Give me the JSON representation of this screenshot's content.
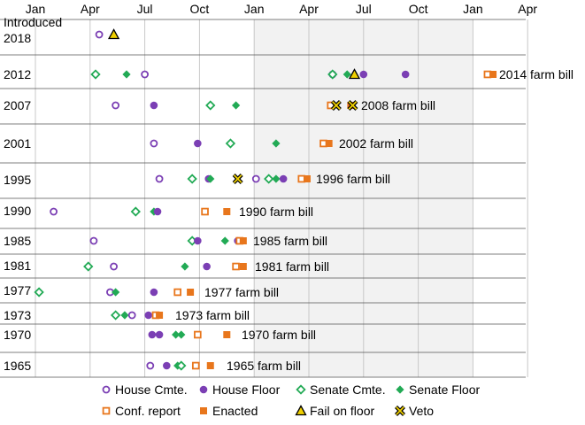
{
  "chart_data": {
    "type": "scatter",
    "title": "",
    "xlabel": "",
    "ylabel": "",
    "x_unit": "month offset from January of the introduction year (Jan = 0, Jan of following year = 12)",
    "x_tick_labels": [
      "Jan",
      "Apr",
      "Jul",
      "Oct",
      "Jan",
      "Apr",
      "Jul",
      "Oct",
      "Jan",
      "Apr"
    ],
    "x_range": [
      0,
      27
    ],
    "shaded_range": [
      12,
      24
    ],
    "y_header_label": "Introduced",
    "grid": true,
    "legend_position": "bottom",
    "colors": {
      "house": "#7b3fb4",
      "senate": "#22aa55",
      "conference_enacted": "#e8761c",
      "fail": "#f0d000",
      "shade": "#f2f2f2",
      "grid": "#c8c8c8",
      "row_line": "#555555"
    },
    "legend": [
      {
        "key": "house_cmte",
        "label": "House Cmte."
      },
      {
        "key": "house_floor",
        "label": "House Floor"
      },
      {
        "key": "senate_cmte",
        "label": "Senate Cmte."
      },
      {
        "key": "senate_floor",
        "label": "Senate Floor"
      },
      {
        "key": "conf_report",
        "label": "Conf. report"
      },
      {
        "key": "enacted",
        "label": "Enacted"
      },
      {
        "key": "fail_floor",
        "label": "Fail on floor"
      },
      {
        "key": "veto",
        "label": "Veto"
      }
    ],
    "rows": [
      {
        "year": "2018",
        "bill_label": "",
        "events": [
          {
            "type": "house_cmte",
            "x": 3.5
          },
          {
            "type": "fail_floor",
            "x": 4.3
          }
        ]
      },
      {
        "year": "2012",
        "bill_label": "2014 farm bill",
        "events": [
          {
            "type": "senate_cmte",
            "x": 3.3
          },
          {
            "type": "senate_floor",
            "x": 5.0
          },
          {
            "type": "house_cmte",
            "x": 6.0
          },
          {
            "type": "house_cmte",
            "x": 16.3
          },
          {
            "type": "senate_cmte",
            "x": 16.3
          },
          {
            "type": "senate_floor",
            "x": 17.1
          },
          {
            "type": "fail_floor",
            "x": 17.5
          },
          {
            "type": "house_floor",
            "x": 18.0
          },
          {
            "type": "house_floor",
            "x": 20.3
          },
          {
            "type": "conf_report",
            "x": 24.8
          },
          {
            "type": "enacted",
            "x": 25.1
          }
        ]
      },
      {
        "year": "2007",
        "bill_label": "2008 farm bill",
        "events": [
          {
            "type": "house_cmte",
            "x": 4.4
          },
          {
            "type": "house_floor",
            "x": 6.5
          },
          {
            "type": "senate_cmte",
            "x": 9.6
          },
          {
            "type": "senate_floor",
            "x": 11.0
          },
          {
            "type": "conf_report",
            "x": 16.2
          },
          {
            "type": "veto",
            "x": 16.5
          },
          {
            "type": "enacted",
            "x": 17.3
          },
          {
            "type": "veto",
            "x": 17.4
          }
        ]
      },
      {
        "year": "2001",
        "bill_label": "2002 farm bill",
        "events": [
          {
            "type": "house_cmte",
            "x": 6.5
          },
          {
            "type": "house_floor",
            "x": 8.9
          },
          {
            "type": "senate_cmte",
            "x": 10.7
          },
          {
            "type": "senate_floor",
            "x": 13.2
          },
          {
            "type": "conf_report",
            "x": 15.8
          },
          {
            "type": "enacted",
            "x": 16.1
          }
        ]
      },
      {
        "year": "1995",
        "bill_label": "1996 farm bill",
        "events": [
          {
            "type": "house_cmte",
            "x": 6.8
          },
          {
            "type": "senate_cmte",
            "x": 8.6
          },
          {
            "type": "house_floor",
            "x": 9.5
          },
          {
            "type": "senate_floor",
            "x": 9.6
          },
          {
            "type": "veto",
            "x": 11.1
          },
          {
            "type": "house_cmte",
            "x": 12.1
          },
          {
            "type": "senate_cmte",
            "x": 12.8
          },
          {
            "type": "senate_floor",
            "x": 13.2
          },
          {
            "type": "house_floor",
            "x": 13.6
          },
          {
            "type": "conf_report",
            "x": 14.6
          },
          {
            "type": "enacted",
            "x": 14.9
          }
        ]
      },
      {
        "year": "1990",
        "bill_label": "1990 farm bill",
        "events": [
          {
            "type": "house_cmte",
            "x": 1.0
          },
          {
            "type": "senate_cmte",
            "x": 5.5
          },
          {
            "type": "senate_floor",
            "x": 6.5
          },
          {
            "type": "house_floor",
            "x": 6.7
          },
          {
            "type": "conf_report",
            "x": 9.3
          },
          {
            "type": "enacted",
            "x": 10.5
          }
        ]
      },
      {
        "year": "1985",
        "bill_label": "1985 farm bill",
        "events": [
          {
            "type": "house_cmte",
            "x": 3.2
          },
          {
            "type": "senate_cmte",
            "x": 8.6
          },
          {
            "type": "house_floor",
            "x": 8.9
          },
          {
            "type": "senate_floor",
            "x": 10.4
          },
          {
            "type": "house_floor",
            "x": 11.1
          },
          {
            "type": "conf_report",
            "x": 11.2
          },
          {
            "type": "enacted",
            "x": 11.4
          }
        ]
      },
      {
        "year": "1981",
        "bill_label": "1981 farm bill",
        "events": [
          {
            "type": "senate_cmte",
            "x": 2.9
          },
          {
            "type": "house_cmte",
            "x": 4.3
          },
          {
            "type": "senate_floor",
            "x": 8.2
          },
          {
            "type": "house_floor",
            "x": 9.4
          },
          {
            "type": "conf_report",
            "x": 11.0
          },
          {
            "type": "enacted",
            "x": 11.4
          }
        ]
      },
      {
        "year": "1977",
        "bill_label": "1977 farm bill",
        "events": [
          {
            "type": "senate_cmte",
            "x": 0.2
          },
          {
            "type": "house_cmte",
            "x": 4.1
          },
          {
            "type": "senate_floor",
            "x": 4.4
          },
          {
            "type": "house_floor",
            "x": 6.5
          },
          {
            "type": "conf_report",
            "x": 7.8
          },
          {
            "type": "enacted",
            "x": 8.5
          }
        ]
      },
      {
        "year": "1973",
        "bill_label": "1973 farm bill",
        "events": [
          {
            "type": "senate_cmte",
            "x": 4.4
          },
          {
            "type": "senate_floor",
            "x": 4.9
          },
          {
            "type": "house_cmte",
            "x": 5.3
          },
          {
            "type": "house_floor",
            "x": 6.2
          },
          {
            "type": "conf_report",
            "x": 6.6
          },
          {
            "type": "enacted",
            "x": 6.8
          }
        ]
      },
      {
        "year": "1970",
        "bill_label": "1970 farm bill",
        "events": [
          {
            "type": "house_floor",
            "x": 6.4
          },
          {
            "type": "house_floor",
            "x": 6.8
          },
          {
            "type": "senate_floor",
            "x": 7.7
          },
          {
            "type": "senate_floor",
            "x": 8.0
          },
          {
            "type": "conf_report",
            "x": 8.9
          },
          {
            "type": "enacted",
            "x": 10.5
          }
        ]
      },
      {
        "year": "1965",
        "bill_label": "1965 farm bill",
        "events": [
          {
            "type": "house_cmte",
            "x": 6.3
          },
          {
            "type": "house_floor",
            "x": 7.2
          },
          {
            "type": "senate_floor",
            "x": 7.8
          },
          {
            "type": "senate_cmte",
            "x": 8.0
          },
          {
            "type": "conf_report",
            "x": 8.8
          },
          {
            "type": "enacted",
            "x": 9.6
          }
        ]
      }
    ]
  }
}
